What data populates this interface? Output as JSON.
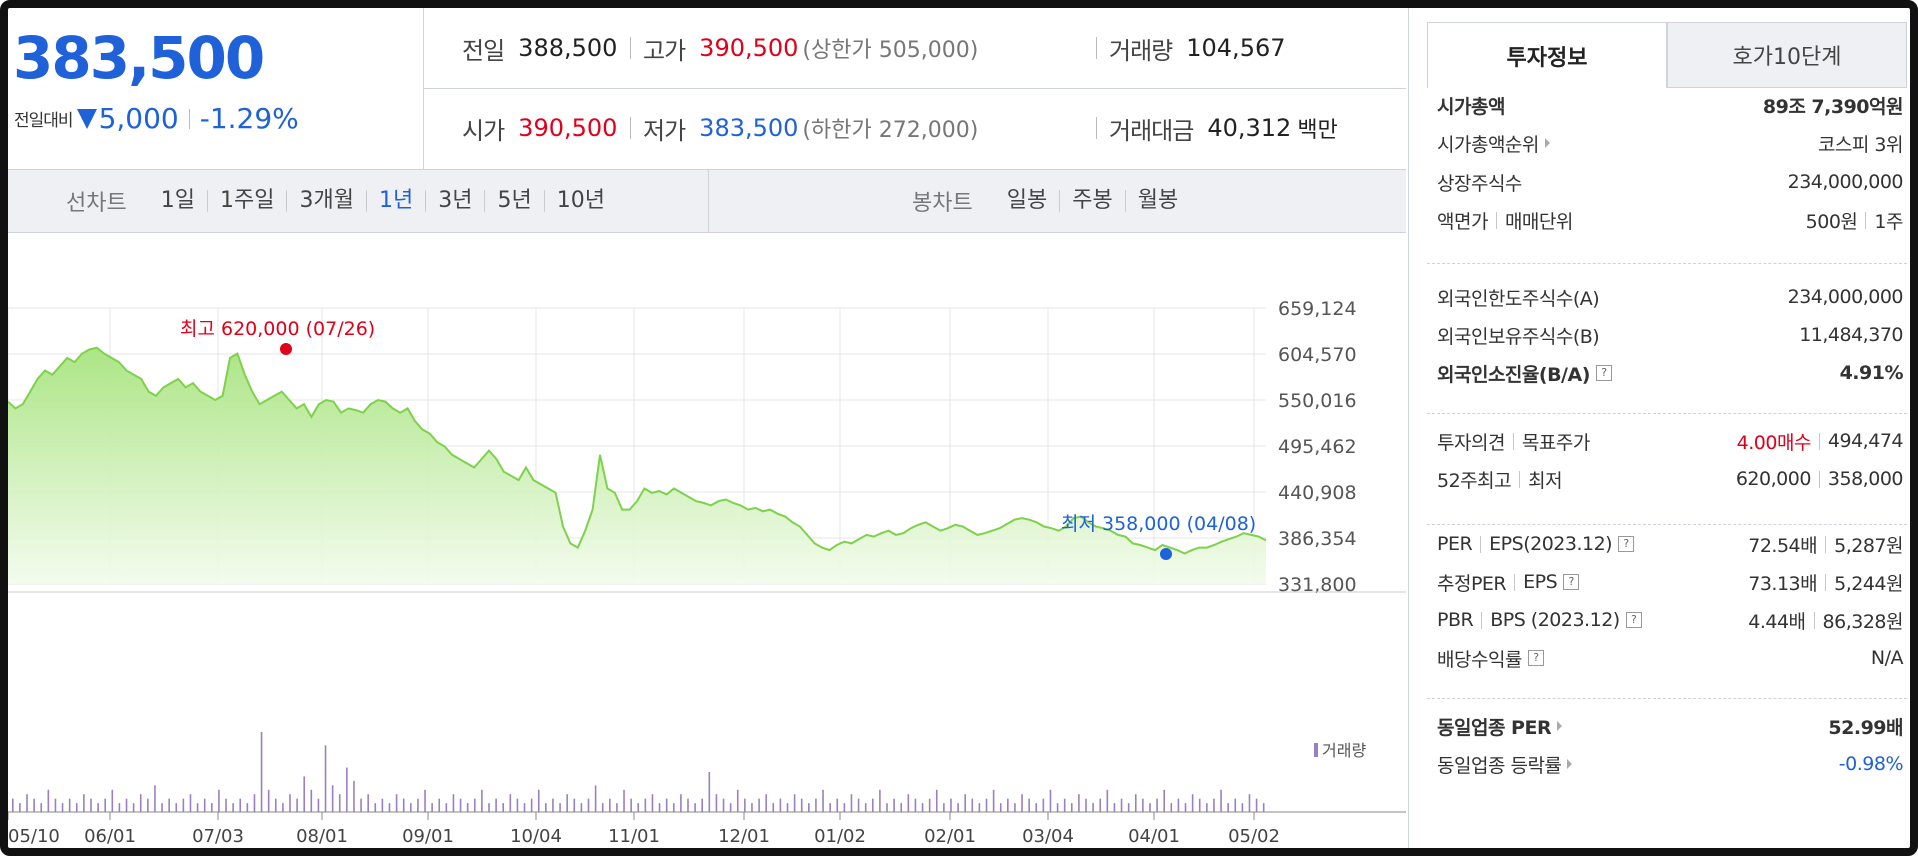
{
  "price": {
    "current": "383,500",
    "change_label": "전일대비",
    "change_value": "5,000",
    "change_percent": "-1.29%"
  },
  "summary": {
    "prev_close_label": "전일",
    "prev_close": "388,500",
    "high_label": "고가",
    "high": "390,500",
    "upper_limit": "(상한가 505,000)",
    "volume_label": "거래량",
    "volume": "104,567",
    "open_label": "시가",
    "open": "390,500",
    "low_label": "저가",
    "low": "383,500",
    "lower_limit": "(하한가 272,000)",
    "amount_label": "거래대금",
    "amount": "40,312",
    "amount_unit": "백만"
  },
  "periods": {
    "line_title": "선차트",
    "line_items": [
      "1일",
      "1주일",
      "3개월",
      "1년",
      "3년",
      "5년",
      "10년"
    ],
    "line_selected": "1년",
    "candle_title": "봉차트",
    "candle_items": [
      "일봉",
      "주봉",
      "월봉"
    ]
  },
  "chart_data": {
    "type": "area",
    "y_ticks": [
      "659,124",
      "604,570",
      "550,016",
      "495,462",
      "440,908",
      "386,354",
      "331,800"
    ],
    "ylim": [
      331800,
      659124
    ],
    "x_ticks": [
      "05/10",
      "06/01",
      "07/03",
      "08/01",
      "09/01",
      "10/04",
      "11/01",
      "12/01",
      "01/02",
      "02/01",
      "03/04",
      "04/01",
      "05/02"
    ],
    "high_annotation": "최고 620,000 (07/26)",
    "low_annotation": "최저 358,000 (04/08)",
    "high_value": 620000,
    "low_value": 358000,
    "volume_label": "거래량",
    "colors": {
      "line": "#7ed14a",
      "fill_top": "#a8e47f",
      "fill_bottom": "#f2fbec",
      "high": "#e0001b",
      "low": "#1e61d8",
      "volume": "#9b7fc4"
    },
    "series": [
      {
        "values": [
          548000,
          540000,
          545000,
          560000,
          575000,
          585000,
          580000,
          590000,
          600000,
          595000,
          605000,
          610000,
          612000,
          605000,
          600000,
          595000,
          585000,
          580000,
          575000,
          560000,
          555000,
          565000,
          570000,
          575000,
          565000,
          570000,
          560000,
          555000,
          550000,
          555000,
          600000,
          605000,
          580000,
          560000,
          545000,
          550000,
          555000,
          560000,
          550000,
          540000,
          545000,
          530000,
          545000,
          550000,
          548000,
          535000,
          540000,
          538000,
          535000,
          545000,
          550000,
          548000,
          540000,
          535000,
          540000,
          525000,
          515000,
          510000,
          500000,
          495000,
          485000,
          480000,
          475000,
          470000,
          480000,
          490000,
          480000,
          465000,
          460000,
          455000,
          470000,
          455000,
          450000,
          445000,
          440000,
          400000,
          380000,
          375000,
          395000,
          420000,
          485000,
          445000,
          440000,
          420000,
          420000,
          430000,
          445000,
          440000,
          442000,
          438000,
          445000,
          440000,
          435000,
          430000,
          428000,
          425000,
          430000,
          432000,
          428000,
          425000,
          420000,
          422000,
          418000,
          420000,
          415000,
          412000,
          405000,
          400000,
          390000,
          380000,
          375000,
          372000,
          378000,
          382000,
          380000,
          385000,
          390000,
          388000,
          392000,
          395000,
          390000,
          392000,
          398000,
          402000,
          405000,
          400000,
          395000,
          398000,
          402000,
          400000,
          395000,
          390000,
          392000,
          395000,
          398000,
          403000,
          408000,
          410000,
          408000,
          405000,
          400000,
          398000,
          395000,
          400000,
          410000,
          412000,
          405000,
          400000,
          398000,
          395000,
          390000,
          388000,
          380000,
          378000,
          375000,
          372000,
          378000,
          375000,
          372000,
          368000,
          372000,
          375000,
          375000,
          378000,
          382000,
          385000,
          388000,
          392000,
          390000,
          388000,
          383500
        ]
      }
    ],
    "volume_values": [
      3,
      2,
      4,
      3,
      2,
      5,
      3,
      2,
      3,
      2,
      4,
      3,
      2,
      3,
      5,
      2,
      3,
      2,
      4,
      3,
      6,
      2,
      3,
      2,
      3,
      4,
      2,
      3,
      2,
      5,
      3,
      2,
      3,
      2,
      4,
      18,
      5,
      3,
      2,
      4,
      3,
      8,
      5,
      3,
      15,
      6,
      4,
      10,
      7,
      3,
      4,
      2,
      3,
      2,
      4,
      3,
      2,
      3,
      5,
      2,
      3,
      2,
      4,
      3,
      2,
      3,
      5,
      2,
      3,
      2,
      4,
      3,
      2,
      3,
      5,
      2,
      3,
      2,
      4,
      3,
      2,
      3,
      6,
      2,
      3,
      2,
      5,
      3,
      2,
      3,
      4,
      2,
      3,
      2,
      4,
      3,
      2,
      3,
      9,
      4,
      3,
      2,
      5,
      3,
      2,
      3,
      4,
      2,
      3,
      2,
      4,
      3,
      2,
      3,
      5,
      2,
      3,
      2,
      4,
      3,
      2,
      3,
      5,
      2,
      3,
      2,
      4,
      3,
      2,
      3,
      5,
      2,
      3,
      2,
      4,
      3,
      2,
      3,
      5,
      2,
      3,
      2,
      4,
      3,
      2,
      3,
      5,
      2,
      3,
      2,
      4,
      3,
      2,
      3,
      5,
      2,
      3,
      2,
      4,
      3,
      2,
      3,
      5,
      2,
      3,
      2,
      4,
      3,
      2,
      3,
      5,
      2,
      3,
      2,
      4,
      3,
      2
    ]
  },
  "info": {
    "tabs": [
      "투자정보",
      "호가10단계"
    ],
    "rows": [
      {
        "label": "시가총액",
        "value": "89조 7,390억원",
        "bold": true
      },
      {
        "label": "시가총액순위",
        "value": "코스피 3위",
        "arrow": true
      },
      {
        "label": "상장주식수",
        "value": "234,000,000"
      },
      {
        "label": "액면가",
        "label2": "매매단위",
        "value": "500원",
        "value2": "1주"
      },
      {
        "label": "외국인한도주식수(A)",
        "value": "234,000,000"
      },
      {
        "label": "외국인보유주식수(B)",
        "value": "11,484,370"
      },
      {
        "label": "외국인소진율(B/A)",
        "value": "4.91%",
        "bold": true,
        "qm": true
      },
      {
        "label": "투자의견",
        "label2": "목표주가",
        "value": "4.00매수",
        "value2": "494,474"
      },
      {
        "label": "52주최고",
        "label2": "최저",
        "value": "620,000",
        "value2": "358,000"
      },
      {
        "label": "PER",
        "label2": "EPS(2023.12)",
        "value": "72.54배",
        "value2": "5,287원",
        "qm": true
      },
      {
        "label": "추정PER",
        "label2": "EPS",
        "value": "73.13배",
        "value2": "5,244원",
        "qm": true
      },
      {
        "label": "PBR",
        "label2": "BPS (2023.12)",
        "value": "4.44배",
        "value2": "86,328원",
        "qm": true
      },
      {
        "label": "배당수익률",
        "value": "N/A",
        "qm": true
      },
      {
        "label": "동일업종 PER",
        "value": "52.99배",
        "bold": true,
        "arrow": true
      },
      {
        "label": "동일업종 등락률",
        "value": "-0.98%",
        "arrow": true
      }
    ]
  }
}
